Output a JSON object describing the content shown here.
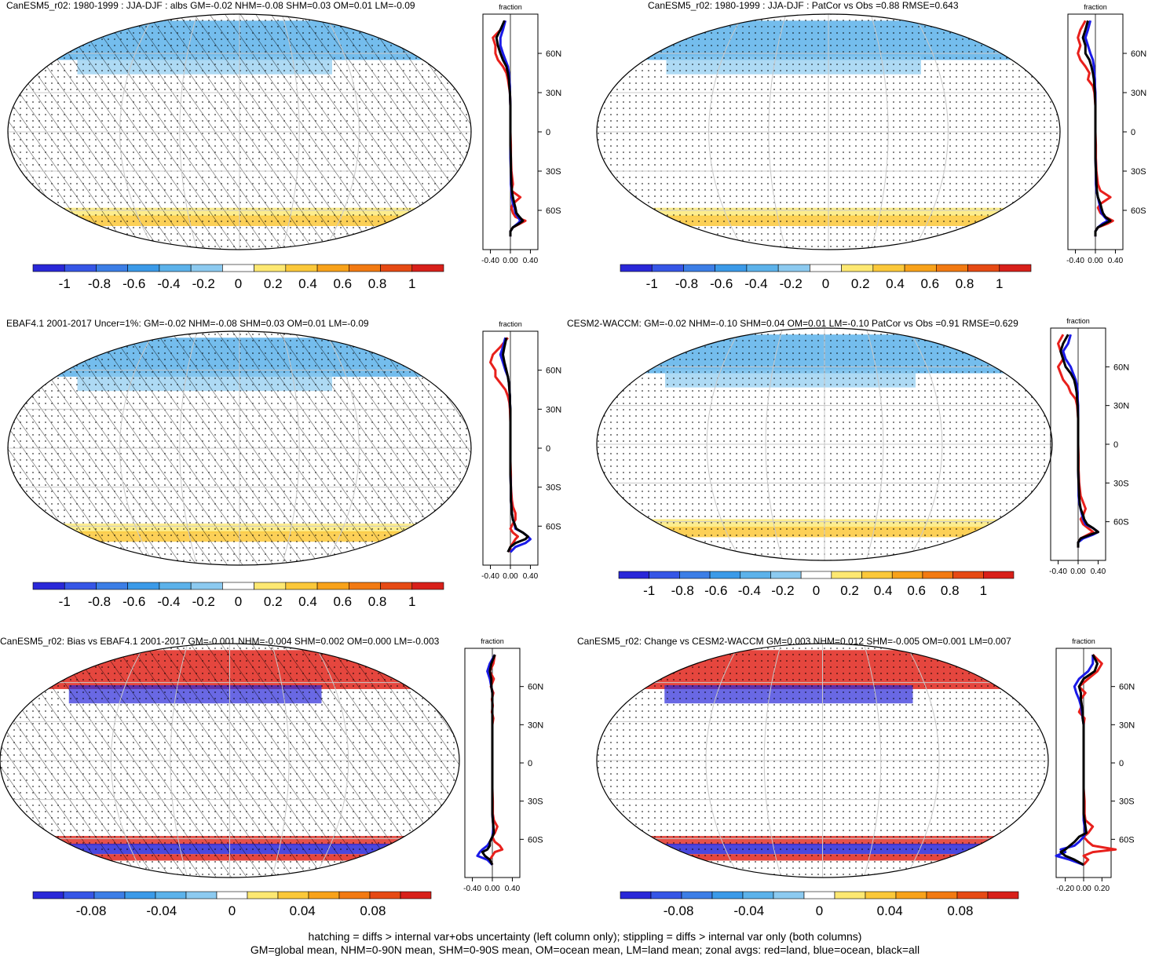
{
  "chart_data": [
    {
      "type": "heatmap",
      "title": "CanESM5_r02: 1980-1999 : JJA-DJF : albs GM=-0.02 NHM=-0.08 SHM=0.03 OM=0.01 LM=-0.09",
      "colorbar_ticks": [
        "-1",
        "-0.8",
        "-0.6",
        "-0.4",
        "-0.2",
        "0",
        "0.2",
        "0.4",
        "0.6",
        "0.8",
        "1"
      ],
      "zonal_ylabels": [
        "60N",
        "30N",
        "0",
        "30S",
        "60S"
      ],
      "zonal_xlabels": [
        "-0.40",
        "0.00",
        "0.40"
      ],
      "zonal_xlabel": "fraction",
      "zonal_series": {
        "lat": [
          85,
          78,
          72,
          66,
          60,
          55,
          50,
          45,
          40,
          35,
          30,
          20,
          10,
          0,
          -10,
          -20,
          -30,
          -40,
          -45,
          -50,
          -55,
          -58,
          -62,
          -65,
          -68,
          -70,
          -73,
          -76,
          -80
        ],
        "land": [
          -0.1,
          -0.2,
          -0.35,
          -0.3,
          -0.3,
          -0.25,
          -0.15,
          -0.08,
          -0.05,
          -0.03,
          -0.01,
          0,
          0,
          0,
          0.01,
          0.01,
          0.02,
          0.05,
          0.02,
          0.2,
          0.05,
          0.02,
          0.05,
          0.1,
          0.3,
          0.2,
          0.05,
          0,
          0
        ],
        "ocean": [
          -0.1,
          -0.15,
          -0.2,
          -0.2,
          -0.15,
          -0.1,
          -0.05,
          -0.03,
          -0.02,
          -0.01,
          -0.01,
          0,
          0,
          0,
          0,
          0,
          0.01,
          0.01,
          0.02,
          0.03,
          0.05,
          0.08,
          0.1,
          0.15,
          0.2,
          0.15,
          0.05,
          0,
          0
        ],
        "all": [
          -0.12,
          -0.2,
          -0.28,
          -0.25,
          -0.2,
          -0.15,
          -0.08,
          -0.05,
          -0.03,
          -0.02,
          -0.01,
          0,
          0,
          0,
          0,
          0.01,
          0.01,
          0.02,
          0.03,
          0.05,
          0.08,
          0.1,
          0.12,
          0.18,
          0.25,
          0.18,
          0.05,
          0,
          0
        ]
      }
    },
    {
      "type": "heatmap",
      "title": "CanESM5_r02: 1980-1999 : JJA-DJF : PatCor vs Obs =0.88 RMSE=0.643",
      "colorbar_ticks": [
        "-1",
        "-0.8",
        "-0.6",
        "-0.4",
        "-0.2",
        "0",
        "0.2",
        "0.4",
        "0.6",
        "0.8",
        "1"
      ],
      "zonal_ylabels": [
        "60N",
        "30N",
        "0",
        "30S",
        "60S"
      ],
      "zonal_xlabels": [
        "-0.40",
        "0.00",
        "0.40"
      ],
      "zonal_xlabel": "fraction",
      "zonal_series": {
        "lat": [
          85,
          78,
          72,
          66,
          60,
          55,
          50,
          45,
          40,
          35,
          30,
          20,
          10,
          0,
          -10,
          -20,
          -30,
          -40,
          -45,
          -50,
          -55,
          -58,
          -62,
          -65,
          -68,
          -70,
          -73,
          -76,
          -80
        ],
        "land": [
          -0.2,
          -0.3,
          -0.35,
          -0.3,
          -0.35,
          -0.3,
          -0.2,
          -0.12,
          -0.15,
          -0.05,
          -0.02,
          0,
          0,
          0,
          0.01,
          0.01,
          0.02,
          0.05,
          0.1,
          0.3,
          0.1,
          0.05,
          0.1,
          0.2,
          0.35,
          0.25,
          0.05,
          0,
          0
        ],
        "ocean": [
          -0.1,
          -0.15,
          -0.2,
          -0.15,
          -0.1,
          -0.05,
          -0.03,
          -0.02,
          -0.01,
          -0.01,
          0,
          0,
          0,
          0,
          0,
          0,
          0.01,
          0.01,
          0.02,
          0.05,
          0.08,
          0.1,
          0.12,
          0.18,
          0.25,
          0.15,
          0.05,
          0,
          0
        ],
        "all": [
          -0.15,
          -0.2,
          -0.25,
          -0.2,
          -0.2,
          -0.12,
          -0.08,
          -0.05,
          -0.03,
          -0.02,
          -0.01,
          0,
          0,
          0,
          0,
          0,
          0.01,
          0.02,
          0.03,
          0.05,
          0.1,
          0.12,
          0.15,
          0.2,
          0.3,
          0.2,
          0.05,
          0,
          0
        ]
      }
    },
    {
      "type": "heatmap",
      "title": "EBAF4.1 2001-2017 Uncer=1%: GM=-0.02 NHM=-0.08 SHM=0.03 OM=0.01 LM=-0.09",
      "colorbar_ticks": [
        "-1",
        "-0.8",
        "-0.6",
        "-0.4",
        "-0.2",
        "0",
        "0.2",
        "0.4",
        "0.6",
        "0.8",
        "1"
      ],
      "zonal_ylabels": [
        "60N",
        "30N",
        "0",
        "30S",
        "60S"
      ],
      "zonal_xlabels": [
        "-0.40",
        "0.00",
        "0.40"
      ],
      "zonal_xlabel": "fraction",
      "zonal_series": {
        "lat": [
          85,
          78,
          72,
          66,
          60,
          55,
          50,
          45,
          40,
          35,
          30,
          20,
          10,
          0,
          -10,
          -20,
          -30,
          -40,
          -45,
          -50,
          -55,
          -58,
          -62,
          -65,
          -68,
          -70,
          -73,
          -76,
          -80
        ],
        "land": [
          -0.05,
          -0.2,
          -0.35,
          -0.4,
          -0.3,
          -0.3,
          -0.2,
          -0.1,
          -0.05,
          -0.02,
          -0.01,
          0,
          0,
          0,
          0,
          0.01,
          0.01,
          0.03,
          0.05,
          0.1,
          0.1,
          0.05,
          0,
          0.05,
          0.15,
          0.1,
          0.05,
          0,
          0
        ],
        "ocean": [
          -0.1,
          -0.15,
          -0.2,
          -0.15,
          -0.1,
          -0.05,
          -0.03,
          -0.02,
          -0.01,
          -0.01,
          0,
          0,
          0,
          0,
          0,
          0,
          0.01,
          0.01,
          0.02,
          0.03,
          0.05,
          0.08,
          0.1,
          0.25,
          0.35,
          0.4,
          0.3,
          0.1,
          0
        ],
        "all": [
          -0.08,
          -0.12,
          -0.15,
          -0.12,
          -0.08,
          -0.05,
          -0.03,
          -0.02,
          -0.01,
          -0.01,
          0,
          0,
          0,
          0,
          0,
          0,
          0.01,
          0.01,
          0.02,
          0.03,
          0.05,
          0.08,
          0.12,
          0.25,
          0.35,
          0.3,
          0.1,
          0,
          -0.05
        ]
      }
    },
    {
      "type": "heatmap",
      "title": "CESM2-WACCM: GM=-0.02 NHM=-0.10 SHM=0.04 OM=0.01 LM=-0.10 PatCor vs Obs =0.91 RMSE=0.629",
      "colorbar_ticks": [
        "-1",
        "-0.8",
        "-0.6",
        "-0.4",
        "-0.2",
        "0",
        "0.2",
        "0.4",
        "0.6",
        "0.8",
        "1"
      ],
      "zonal_ylabels": [
        "60N",
        "30N",
        "0",
        "30S",
        "60S"
      ],
      "zonal_xlabels": [
        "-0.40",
        "0.00",
        "0.40"
      ],
      "zonal_xlabel": "fraction",
      "zonal_series": {
        "lat": [
          85,
          78,
          72,
          66,
          60,
          55,
          50,
          45,
          40,
          35,
          30,
          20,
          10,
          0,
          -10,
          -20,
          -30,
          -40,
          -45,
          -50,
          -55,
          -58,
          -62,
          -65,
          -68,
          -70,
          -73,
          -76,
          -80
        ],
        "land": [
          -0.3,
          -0.4,
          -0.35,
          -0.3,
          -0.4,
          -0.35,
          -0.3,
          -0.2,
          -0.15,
          -0.05,
          -0.02,
          0,
          0,
          0,
          0.01,
          0.01,
          0.02,
          0.05,
          0.1,
          0.15,
          0.1,
          0.05,
          0.1,
          0.2,
          0.3,
          0.2,
          0.05,
          0,
          0
        ],
        "ocean": [
          -0.15,
          -0.2,
          -0.3,
          -0.25,
          -0.15,
          -0.1,
          -0.05,
          -0.02,
          -0.01,
          -0.01,
          0,
          0,
          0,
          0,
          0,
          0,
          0.01,
          0.01,
          0.02,
          0.05,
          0.08,
          0.1,
          0.15,
          0.3,
          0.4,
          0.3,
          0.1,
          0,
          0
        ],
        "all": [
          -0.2,
          -0.3,
          -0.35,
          -0.3,
          -0.25,
          -0.15,
          -0.08,
          -0.05,
          -0.03,
          -0.02,
          -0.01,
          0,
          0,
          0,
          0,
          0,
          0.01,
          0.02,
          0.03,
          0.05,
          0.1,
          0.12,
          0.18,
          0.3,
          0.4,
          0.25,
          0.05,
          0,
          0
        ]
      }
    },
    {
      "type": "heatmap",
      "title": "CanESM5_r02: Bias vs EBAF4.1 2001-2017 GM=-0.001 NHM=-0.004 SHM=0.002 OM=0.000 LM=-0.003",
      "colorbar_ticks": [
        "-0.08",
        "-0.04",
        "0",
        "0.04",
        "0.08"
      ],
      "zonal_ylabels": [
        "60N",
        "30N",
        "0",
        "30S",
        "60S"
      ],
      "zonal_xlabels": [
        "-0.40",
        "0.00",
        "0.40"
      ],
      "zonal_xlabel": "fraction",
      "zonal_series": {
        "lat": [
          85,
          78,
          72,
          66,
          60,
          55,
          50,
          45,
          40,
          35,
          30,
          20,
          10,
          0,
          -10,
          -20,
          -30,
          -40,
          -45,
          -50,
          -55,
          -58,
          -62,
          -65,
          -68,
          -70,
          -73,
          -76,
          -80
        ],
        "land": [
          0.05,
          0.02,
          -0.05,
          0.03,
          -0.03,
          0.02,
          -0.01,
          0.01,
          -0.01,
          0.02,
          0,
          0,
          0,
          0,
          0,
          0,
          0.01,
          0.01,
          0.03,
          0.1,
          0.05,
          0,
          0.05,
          0.15,
          0.2,
          0.05,
          0,
          -0.05,
          0
        ],
        "ocean": [
          0.05,
          -0.05,
          -0.1,
          -0.05,
          -0.02,
          0,
          0,
          0,
          0,
          0,
          0,
          0,
          0,
          0,
          0,
          0,
          0,
          0,
          0.01,
          0.02,
          0.01,
          0,
          -0.05,
          -0.1,
          -0.2,
          -0.25,
          -0.3,
          -0.1,
          0
        ],
        "all": [
          0.05,
          -0.02,
          -0.05,
          -0.02,
          -0.02,
          0,
          0,
          0,
          0,
          0,
          0,
          0,
          0,
          0,
          0,
          0,
          0,
          0,
          0.01,
          0.02,
          0.03,
          0,
          -0.05,
          -0.05,
          -0.1,
          -0.2,
          -0.15,
          -0.05,
          0
        ]
      }
    },
    {
      "type": "heatmap",
      "title": "CanESM5_r02: Change vs CESM2-WACCM GM=0.003 NHM=0.012 SHM=-0.005 OM=0.001 LM=0.007",
      "colorbar_ticks": [
        "-0.08",
        "-0.04",
        "0",
        "0.04",
        "0.08"
      ],
      "zonal_ylabels": [
        "60N",
        "30N",
        "0",
        "30S",
        "60S"
      ],
      "zonal_xlabels": [
        "-0.20",
        "0.00",
        "0.20"
      ],
      "zonal_xlabel": "fraction",
      "zonal_series": {
        "lat": [
          85,
          78,
          72,
          66,
          60,
          55,
          50,
          45,
          40,
          35,
          30,
          20,
          10,
          0,
          -10,
          -20,
          -30,
          -40,
          -45,
          -50,
          -55,
          -58,
          -62,
          -65,
          -68,
          -70,
          -73,
          -76,
          -80
        ],
        "land": [
          0.1,
          0.2,
          0.15,
          0.05,
          -0.05,
          0.02,
          -0.03,
          -0.02,
          -0.05,
          0.01,
          0,
          0,
          0,
          0,
          0,
          0,
          0.01,
          0.01,
          0.02,
          0.1,
          0.05,
          0,
          0.05,
          0.1,
          0.35,
          0.1,
          0,
          0.05,
          0
        ],
        "ocean": [
          0.1,
          0.1,
          0.05,
          -0.05,
          -0.1,
          -0.08,
          -0.05,
          -0.03,
          -0.02,
          -0.01,
          0,
          0,
          0,
          0,
          0,
          0,
          0,
          0,
          0,
          0.01,
          0.02,
          0,
          -0.05,
          -0.1,
          -0.25,
          -0.2,
          -0.3,
          -0.15,
          0
        ],
        "all": [
          0.1,
          0.15,
          0.12,
          0,
          -0.05,
          -0.03,
          -0.03,
          -0.02,
          -0.01,
          -0.01,
          0,
          0,
          0,
          0,
          0,
          0,
          0,
          0,
          0.01,
          0.02,
          0.03,
          -0.05,
          -0.1,
          -0.15,
          -0.2,
          -0.25,
          -0.2,
          -0.1,
          0
        ]
      }
    }
  ],
  "colors": {
    "land": "#e8201c",
    "ocean": "#1a1ae8",
    "all": "#000000",
    "palette_11": [
      "#2a28d8",
      "#3656e6",
      "#3c7ee6",
      "#3b9ae8",
      "#5cb2ea",
      "#8ccaf0",
      "#ffffff",
      "#fde872",
      "#fbc83a",
      "#f8a21a",
      "#f27a12",
      "#e64a14",
      "#d8201a"
    ]
  },
  "caption": {
    "line1": "hatching = diffs > internal var+obs uncertainty (left column only); stippling = diffs > internal var only (both columns)",
    "line2": "GM=global mean, NHM=0-90N mean, SHM=0-90S mean, OM=ocean mean, LM=land mean; zonal avgs: red=land, blue=ocean, black=all"
  }
}
